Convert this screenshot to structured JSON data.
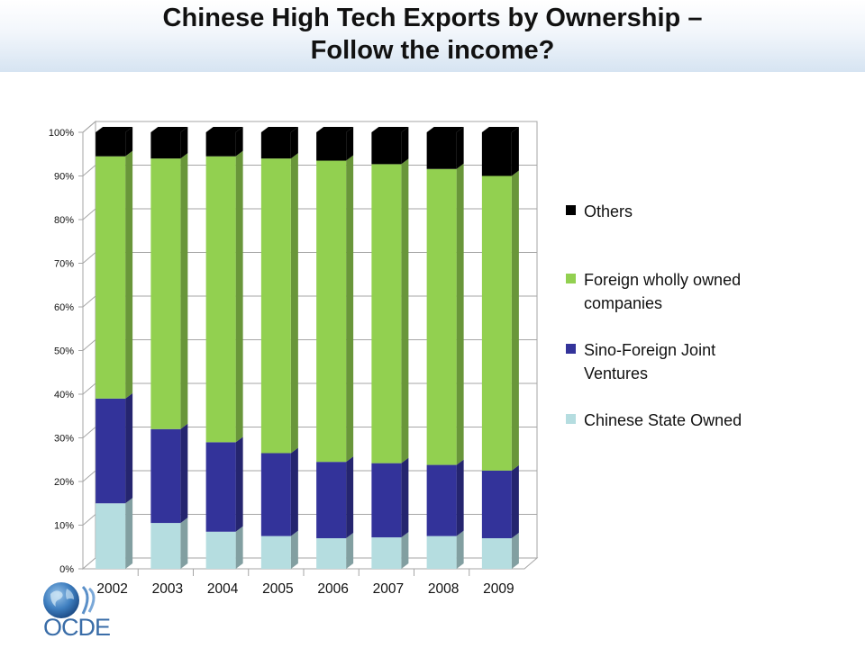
{
  "slide": {
    "title_line1": "Chinese High Tech Exports by Ownership –",
    "title_line2": "Follow the income?"
  },
  "logo": {
    "text": "OCDE"
  },
  "chart_data": {
    "type": "bar",
    "stacked": true,
    "percent_stacked": true,
    "three_d": true,
    "categories": [
      "2002",
      "2003",
      "2004",
      "2005",
      "2006",
      "2007",
      "2008",
      "2009"
    ],
    "series": [
      {
        "name": "Chinese State Owned",
        "color": "#b5dde0",
        "values": [
          15,
          10.5,
          8.5,
          7.5,
          7,
          7.2,
          7.5,
          7
        ]
      },
      {
        "name": "Sino-Foreign Joint Ventures",
        "color": "#33339a",
        "values": [
          24,
          21.5,
          20.5,
          19,
          17.5,
          17,
          16.3,
          15.5
        ]
      },
      {
        "name": "Foreign wholly owned companies",
        "color": "#92d050",
        "values": [
          55.5,
          62,
          65.5,
          67.5,
          69,
          68.5,
          67.8,
          67.5
        ]
      },
      {
        "name": "Others",
        "color": "#000000",
        "values": [
          5.5,
          6,
          5.5,
          6,
          6.5,
          7.3,
          8.4,
          10
        ]
      }
    ],
    "legend_order": [
      "Others",
      "Foreign wholly owned companies",
      "Sino-Foreign Joint Ventures",
      "Chinese State Owned"
    ],
    "y_ticks": [
      "0%",
      "10%",
      "20%",
      "30%",
      "40%",
      "50%",
      "60%",
      "70%",
      "80%",
      "90%",
      "100%"
    ],
    "ylim": [
      0,
      100
    ],
    "grid": true,
    "legend_position": "right"
  }
}
